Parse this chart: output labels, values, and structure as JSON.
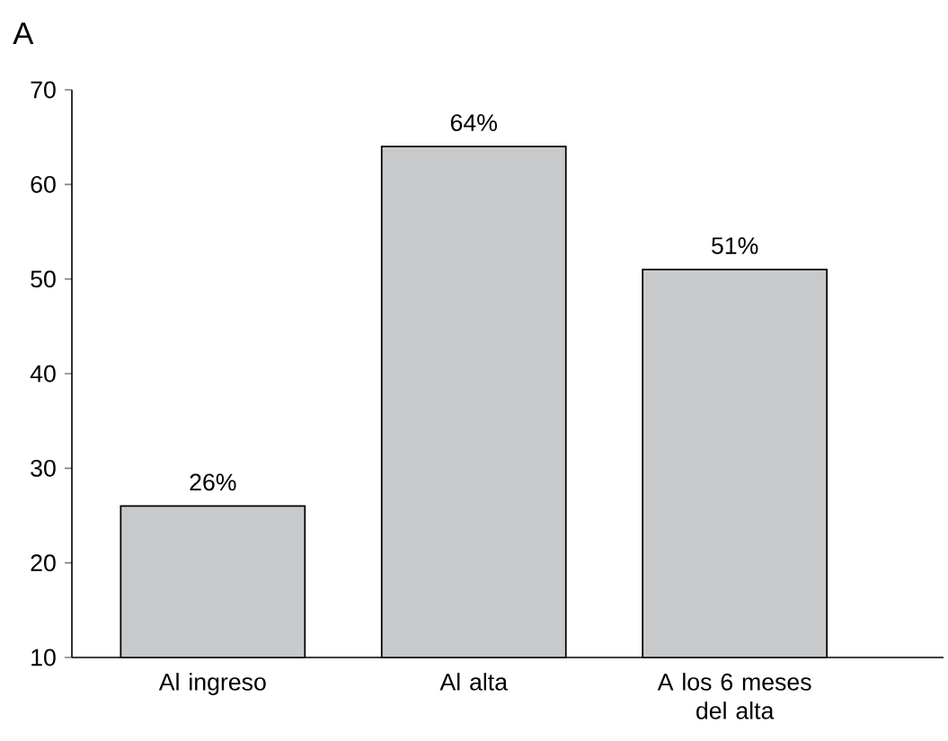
{
  "chart_data": {
    "type": "bar",
    "title": "A",
    "categories": [
      "Al ingreso",
      "Al alta",
      "A los 6 meses del alta"
    ],
    "values": [
      26,
      64,
      51
    ],
    "value_labels": [
      "26%",
      "64%",
      "51%"
    ],
    "color": "#c8c9cb",
    "ylim": [
      10,
      70
    ],
    "yticks": [
      10,
      20,
      30,
      40,
      50,
      60,
      70
    ],
    "grid": false
  }
}
